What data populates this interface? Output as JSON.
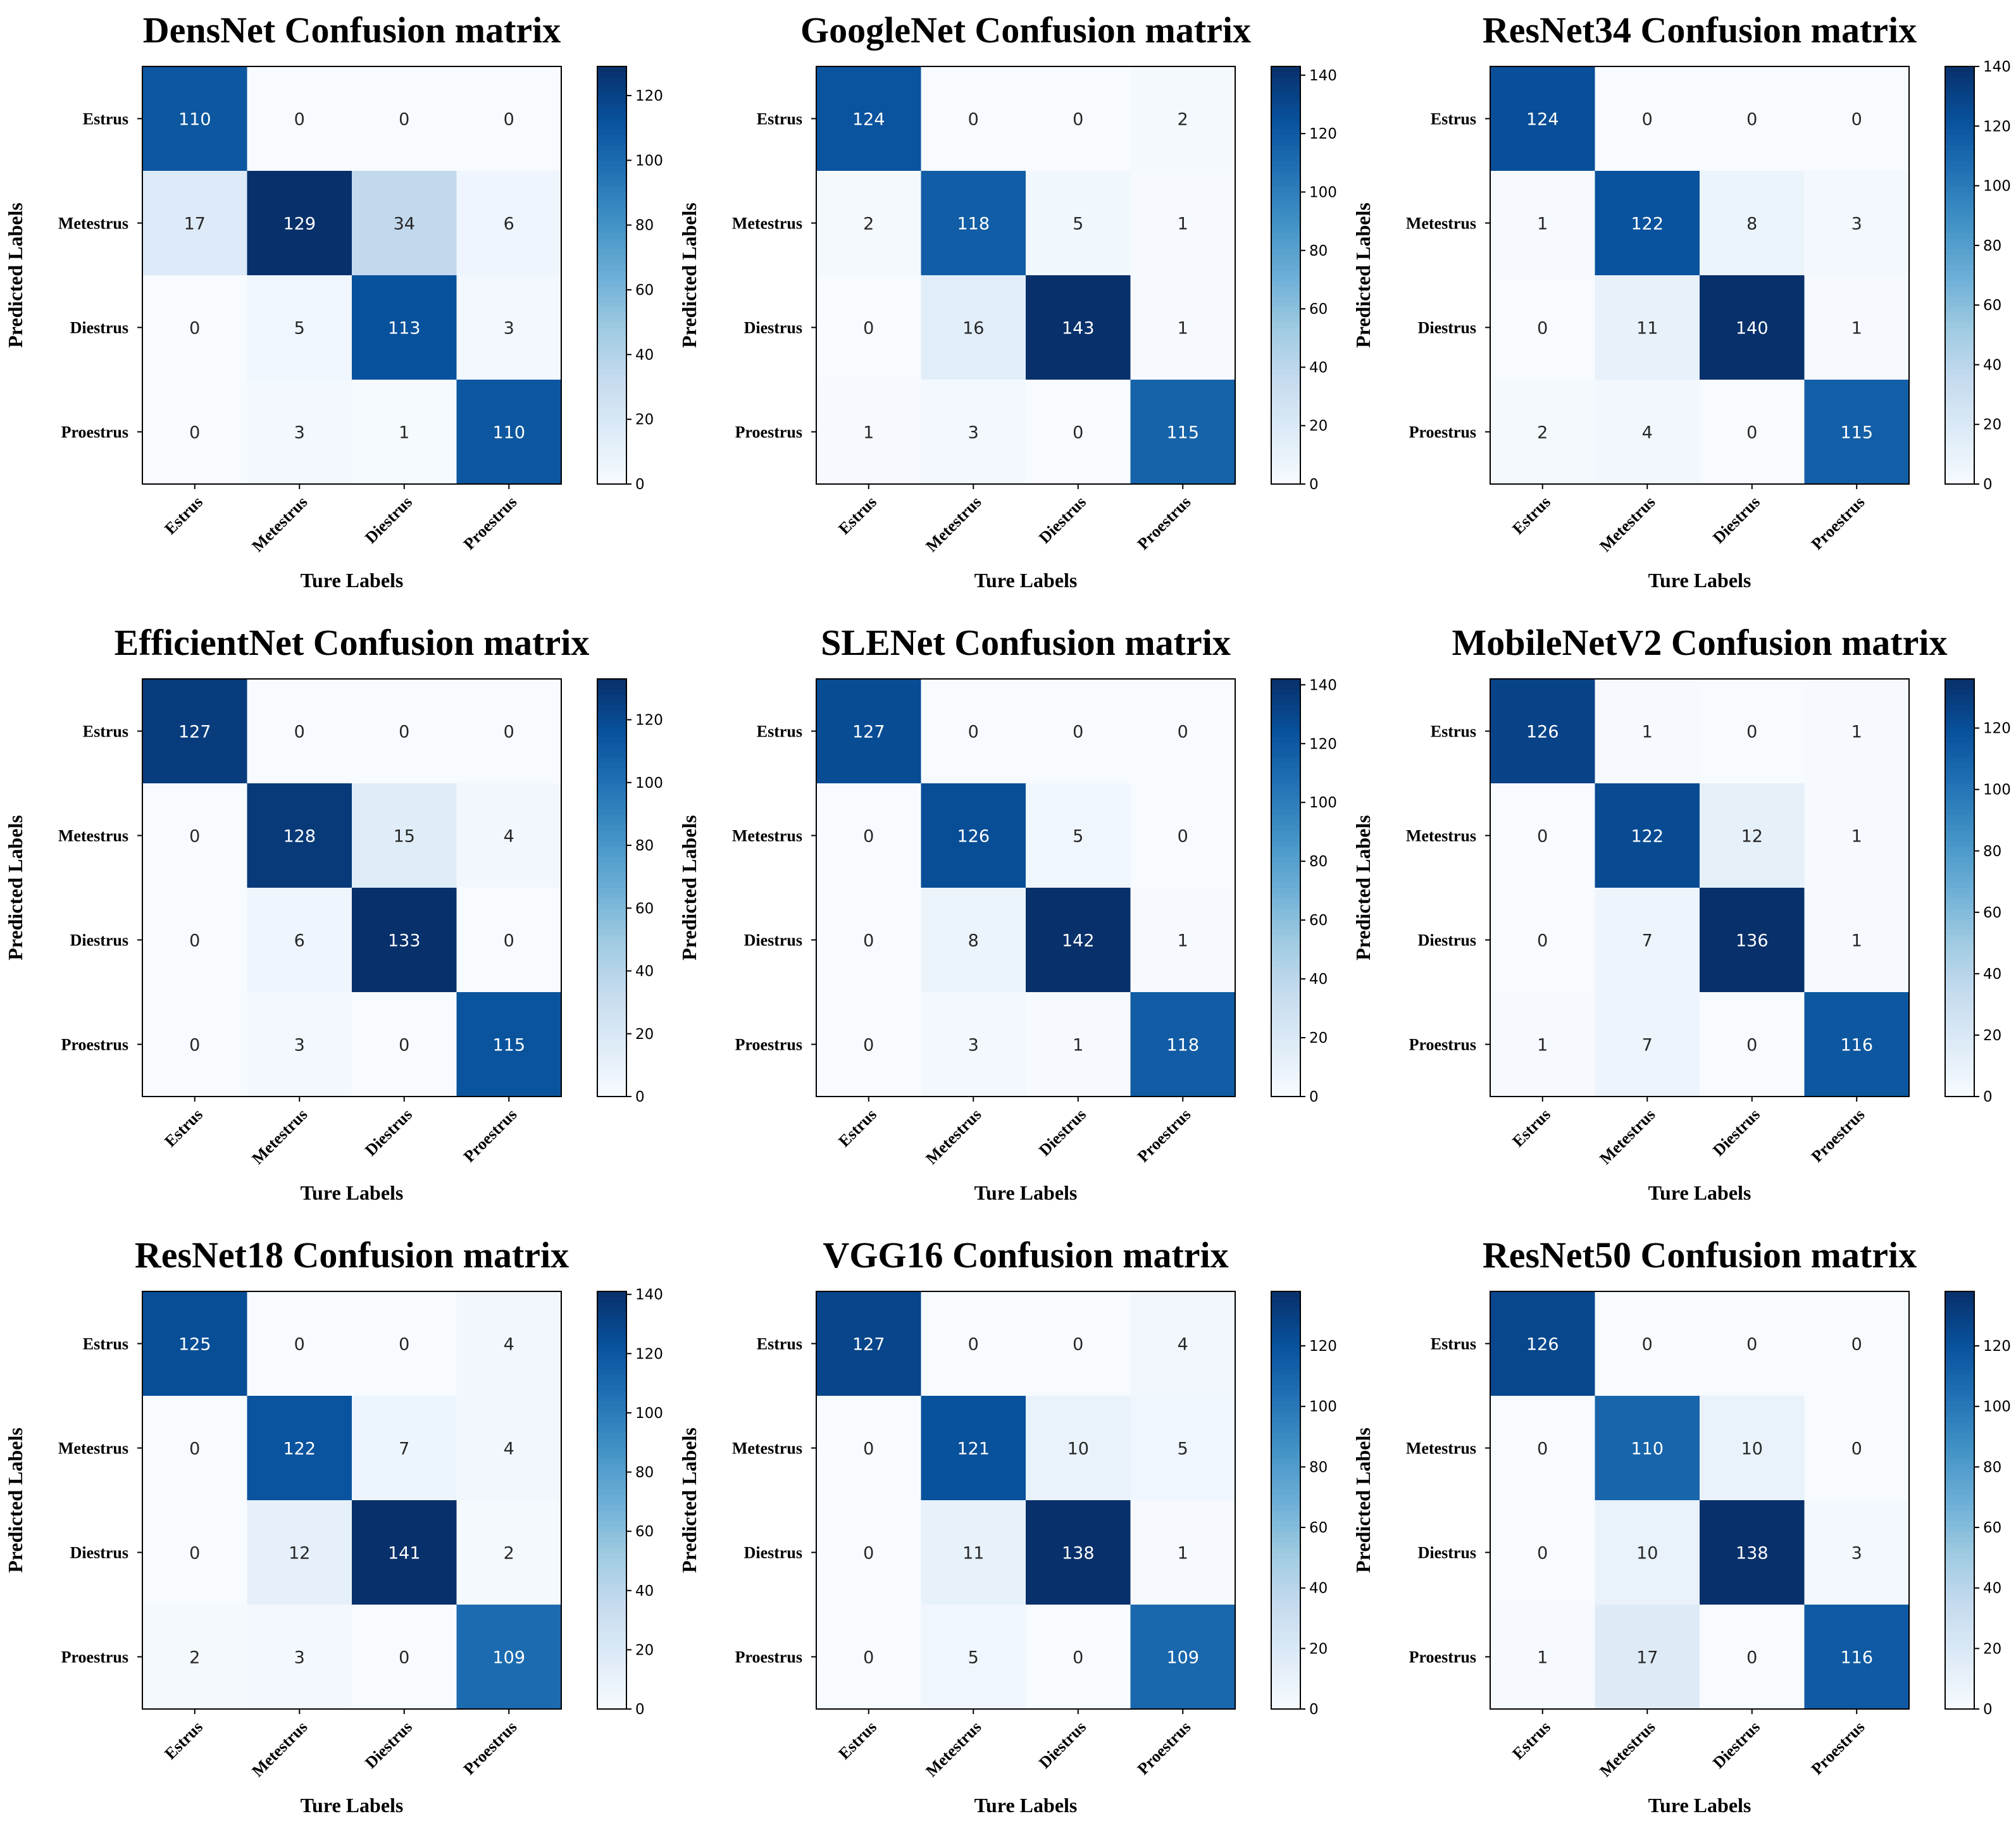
{
  "colors": {
    "scale": [
      "#f7fbff",
      "#deebf7",
      "#c6dbef",
      "#9ecae1",
      "#6baed6",
      "#4292c6",
      "#2171b5",
      "#08519c",
      "#08306b"
    ],
    "text_dark": "#262626",
    "text_light": "#ffffff",
    "axis": "#000000"
  },
  "chart_data": [
    {
      "type": "heatmap",
      "title": "DensNet Confusion matrix",
      "xlabel": "Ture Labels",
      "ylabel": "Predicted Labels",
      "row_labels": [
        "Estrus",
        "Metestrus",
        "Diestrus",
        "Proestrus"
      ],
      "col_labels": [
        "Estrus",
        "Metestrus",
        "Diestrus",
        "Proestrus"
      ],
      "values": [
        [
          110,
          0,
          0,
          0
        ],
        [
          17,
          129,
          34,
          6
        ],
        [
          0,
          5,
          113,
          3
        ],
        [
          0,
          3,
          1,
          110
        ]
      ],
      "colorbar": {
        "min": 0,
        "max": 129,
        "ticks": [
          0,
          20,
          40,
          60,
          80,
          100,
          120
        ]
      }
    },
    {
      "type": "heatmap",
      "title": "GoogleNet Confusion matrix",
      "xlabel": "Ture Labels",
      "ylabel": "Predicted Labels",
      "row_labels": [
        "Estrus",
        "Metestrus",
        "Diestrus",
        "Proestrus"
      ],
      "col_labels": [
        "Estrus",
        "Metestrus",
        "Diestrus",
        "Proestrus"
      ],
      "values": [
        [
          124,
          0,
          0,
          2
        ],
        [
          2,
          118,
          5,
          1
        ],
        [
          0,
          16,
          143,
          1
        ],
        [
          1,
          3,
          0,
          115
        ]
      ],
      "colorbar": {
        "min": 0,
        "max": 143,
        "ticks": [
          0,
          20,
          40,
          60,
          80,
          100,
          120,
          140
        ]
      }
    },
    {
      "type": "heatmap",
      "title": "ResNet34 Confusion matrix",
      "xlabel": "Ture Labels",
      "ylabel": "Predicted Labels",
      "row_labels": [
        "Estrus",
        "Metestrus",
        "Diestrus",
        "Proestrus"
      ],
      "col_labels": [
        "Estrus",
        "Metestrus",
        "Diestrus",
        "Proestrus"
      ],
      "values": [
        [
          124,
          0,
          0,
          0
        ],
        [
          1,
          122,
          8,
          3
        ],
        [
          0,
          11,
          140,
          1
        ],
        [
          2,
          4,
          0,
          115
        ]
      ],
      "colorbar": {
        "min": 0,
        "max": 140,
        "ticks": [
          0,
          20,
          40,
          60,
          80,
          100,
          120,
          140
        ]
      }
    },
    {
      "type": "heatmap",
      "title": "EfficientNet Confusion matrix",
      "xlabel": "Ture Labels",
      "ylabel": "Predicted Labels",
      "row_labels": [
        "Estrus",
        "Metestrus",
        "Diestrus",
        "Proestrus"
      ],
      "col_labels": [
        "Estrus",
        "Metestrus",
        "Diestrus",
        "Proestrus"
      ],
      "values": [
        [
          127,
          0,
          0,
          0
        ],
        [
          0,
          128,
          15,
          4
        ],
        [
          0,
          6,
          133,
          0
        ],
        [
          0,
          3,
          0,
          115
        ]
      ],
      "colorbar": {
        "min": 0,
        "max": 133,
        "ticks": [
          0,
          20,
          40,
          60,
          80,
          100,
          120
        ]
      }
    },
    {
      "type": "heatmap",
      "title": "SLENet Confusion matrix",
      "xlabel": "Ture Labels",
      "ylabel": "Predicted Labels",
      "row_labels": [
        "Estrus",
        "Metestrus",
        "Diestrus",
        "Proestrus"
      ],
      "col_labels": [
        "Estrus",
        "Metestrus",
        "Diestrus",
        "Proestrus"
      ],
      "values": [
        [
          127,
          0,
          0,
          0
        ],
        [
          0,
          126,
          5,
          0
        ],
        [
          0,
          8,
          142,
          1
        ],
        [
          0,
          3,
          1,
          118
        ]
      ],
      "colorbar": {
        "min": 0,
        "max": 142,
        "ticks": [
          0,
          20,
          40,
          60,
          80,
          100,
          120,
          140
        ]
      }
    },
    {
      "type": "heatmap",
      "title": "MobileNetV2 Confusion matrix",
      "xlabel": "Ture Labels",
      "ylabel": "Predicted Labels",
      "row_labels": [
        "Estrus",
        "Metestrus",
        "Diestrus",
        "Proestrus"
      ],
      "col_labels": [
        "Estrus",
        "Metestrus",
        "Diestrus",
        "Proestrus"
      ],
      "values": [
        [
          126,
          1,
          0,
          1
        ],
        [
          0,
          122,
          12,
          1
        ],
        [
          0,
          7,
          136,
          1
        ],
        [
          1,
          7,
          0,
          116
        ]
      ],
      "colorbar": {
        "min": 0,
        "max": 136,
        "ticks": [
          0,
          20,
          40,
          60,
          80,
          100,
          120
        ]
      }
    },
    {
      "type": "heatmap",
      "title": "ResNet18 Confusion matrix",
      "xlabel": "Ture Labels",
      "ylabel": "Predicted Labels",
      "row_labels": [
        "Estrus",
        "Metestrus",
        "Diestrus",
        "Proestrus"
      ],
      "col_labels": [
        "Estrus",
        "Metestrus",
        "Diestrus",
        "Proestrus"
      ],
      "values": [
        [
          125,
          0,
          0,
          4
        ],
        [
          0,
          122,
          7,
          4
        ],
        [
          0,
          12,
          141,
          2
        ],
        [
          2,
          3,
          0,
          109
        ]
      ],
      "colorbar": {
        "min": 0,
        "max": 141,
        "ticks": [
          0,
          20,
          40,
          60,
          80,
          100,
          120,
          140
        ]
      }
    },
    {
      "type": "heatmap",
      "title": "VGG16 Confusion matrix",
      "xlabel": "Ture Labels",
      "ylabel": "Predicted Labels",
      "row_labels": [
        "Estrus",
        "Metestrus",
        "Diestrus",
        "Proestrus"
      ],
      "col_labels": [
        "Estrus",
        "Metestrus",
        "Diestrus",
        "Proestrus"
      ],
      "values": [
        [
          127,
          0,
          0,
          4
        ],
        [
          0,
          121,
          10,
          5
        ],
        [
          0,
          11,
          138,
          1
        ],
        [
          0,
          5,
          0,
          109
        ]
      ],
      "colorbar": {
        "min": 0,
        "max": 138,
        "ticks": [
          0,
          20,
          40,
          60,
          80,
          100,
          120
        ]
      }
    },
    {
      "type": "heatmap",
      "title": "ResNet50 Confusion matrix",
      "xlabel": "Ture Labels",
      "ylabel": "Predicted Labels",
      "row_labels": [
        "Estrus",
        "Metestrus",
        "Diestrus",
        "Proestrus"
      ],
      "col_labels": [
        "Estrus",
        "Metestrus",
        "Diestrus",
        "Proestrus"
      ],
      "values": [
        [
          126,
          0,
          0,
          0
        ],
        [
          0,
          110,
          10,
          0
        ],
        [
          0,
          10,
          138,
          3
        ],
        [
          1,
          17,
          0,
          116
        ]
      ],
      "colorbar": {
        "min": 0,
        "max": 138,
        "ticks": [
          0,
          20,
          40,
          60,
          80,
          100,
          120
        ]
      }
    }
  ]
}
